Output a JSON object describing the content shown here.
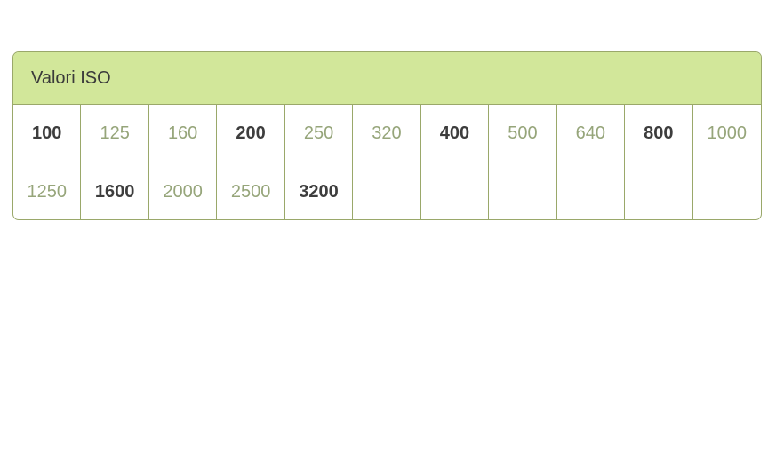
{
  "table": {
    "title": "Valori ISO",
    "rows": [
      [
        {
          "value": "100",
          "full_stop": true
        },
        {
          "value": "125",
          "full_stop": false
        },
        {
          "value": "160",
          "full_stop": false
        },
        {
          "value": "200",
          "full_stop": true
        },
        {
          "value": "250",
          "full_stop": false
        },
        {
          "value": "320",
          "full_stop": false
        },
        {
          "value": "400",
          "full_stop": true
        },
        {
          "value": "500",
          "full_stop": false
        },
        {
          "value": "640",
          "full_stop": false
        },
        {
          "value": "800",
          "full_stop": true
        },
        {
          "value": "1000",
          "full_stop": false
        }
      ],
      [
        {
          "value": "1250",
          "full_stop": false
        },
        {
          "value": "1600",
          "full_stop": true
        },
        {
          "value": "2000",
          "full_stop": false
        },
        {
          "value": "2500",
          "full_stop": false
        },
        {
          "value": "3200",
          "full_stop": true
        },
        {
          "value": "",
          "full_stop": false
        },
        {
          "value": "",
          "full_stop": false
        },
        {
          "value": "",
          "full_stop": false
        },
        {
          "value": "",
          "full_stop": false
        },
        {
          "value": "",
          "full_stop": false
        },
        {
          "value": "",
          "full_stop": false
        }
      ]
    ]
  },
  "colors": {
    "header_bg": "#d2e79a",
    "border": "#9aa86a",
    "full_stop_text": "#3d3d3d",
    "intermediate_text": "#96a57a"
  }
}
